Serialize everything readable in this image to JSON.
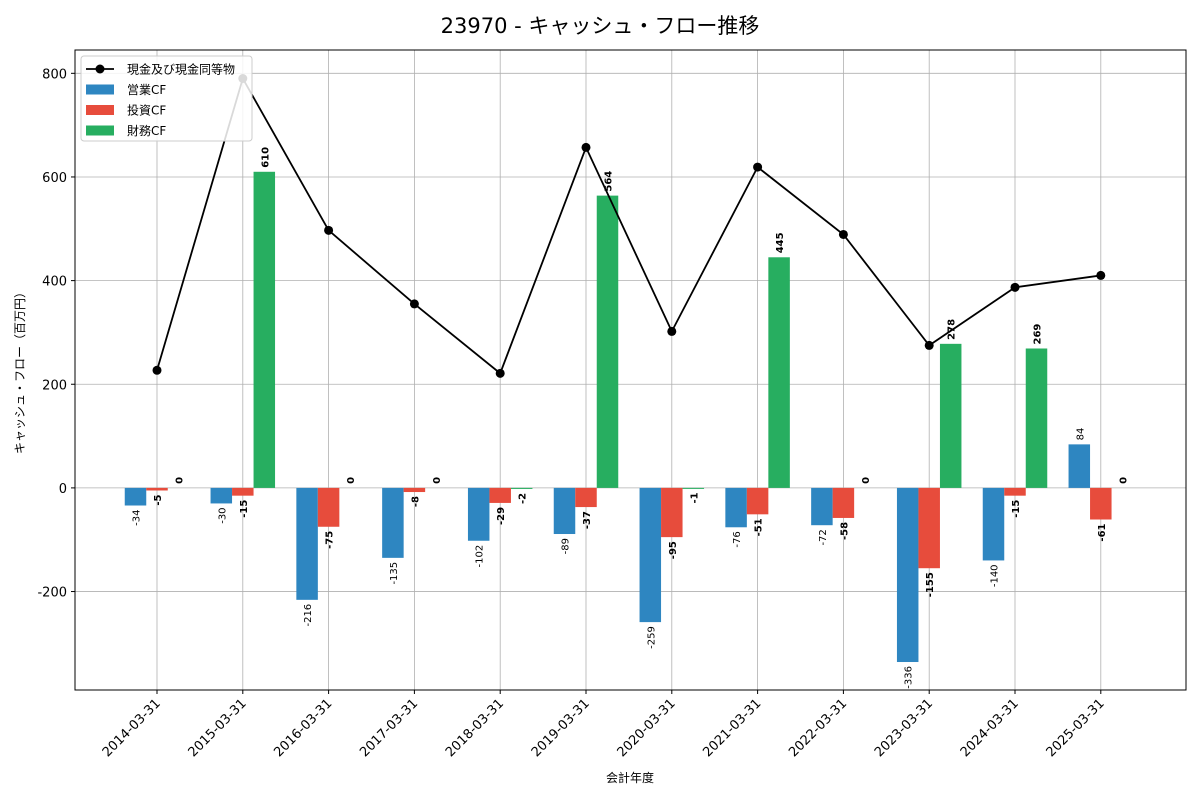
{
  "chart_data": {
    "type": "bar",
    "title": "23970 - キャッシュ・フロー推移",
    "xlabel": "会計年度",
    "ylabel": "キャッシュ・フロー（百万円）",
    "categories": [
      "2014-03-31",
      "2015-03-31",
      "2016-03-31",
      "2017-03-31",
      "2018-03-31",
      "2019-03-31",
      "2020-03-31",
      "2021-03-31",
      "2022-03-31",
      "2023-03-31",
      "2024-03-31",
      "2025-03-31"
    ],
    "series": [
      {
        "name": "営業CF",
        "type": "bar",
        "color": "#2e86c1",
        "values": [
          -34,
          -30,
          -216,
          -135,
          -102,
          -89,
          -259,
          -76,
          -72,
          -336,
          -140,
          84
        ]
      },
      {
        "name": "投資CF",
        "type": "bar",
        "color": "#e74c3c",
        "values": [
          -5,
          -15,
          -75,
          -8,
          -29,
          -37,
          -95,
          -51,
          -58,
          -155,
          -15,
          -61
        ]
      },
      {
        "name": "財務CF",
        "type": "bar",
        "color": "#27ae60",
        "values": [
          0,
          610,
          0,
          0,
          -2,
          564,
          -1,
          445,
          0,
          278,
          269,
          0
        ]
      },
      {
        "name": "現金及び現金同等物",
        "type": "line",
        "color": "#000000",
        "values": [
          227,
          790,
          497,
          355,
          221,
          657,
          302,
          619,
          489,
          275,
          387,
          410
        ]
      }
    ],
    "ylim": [
      -390,
      845
    ],
    "yticks": [
      -200,
      0,
      200,
      400,
      600,
      800
    ],
    "grid": true,
    "legend": "top-left"
  }
}
